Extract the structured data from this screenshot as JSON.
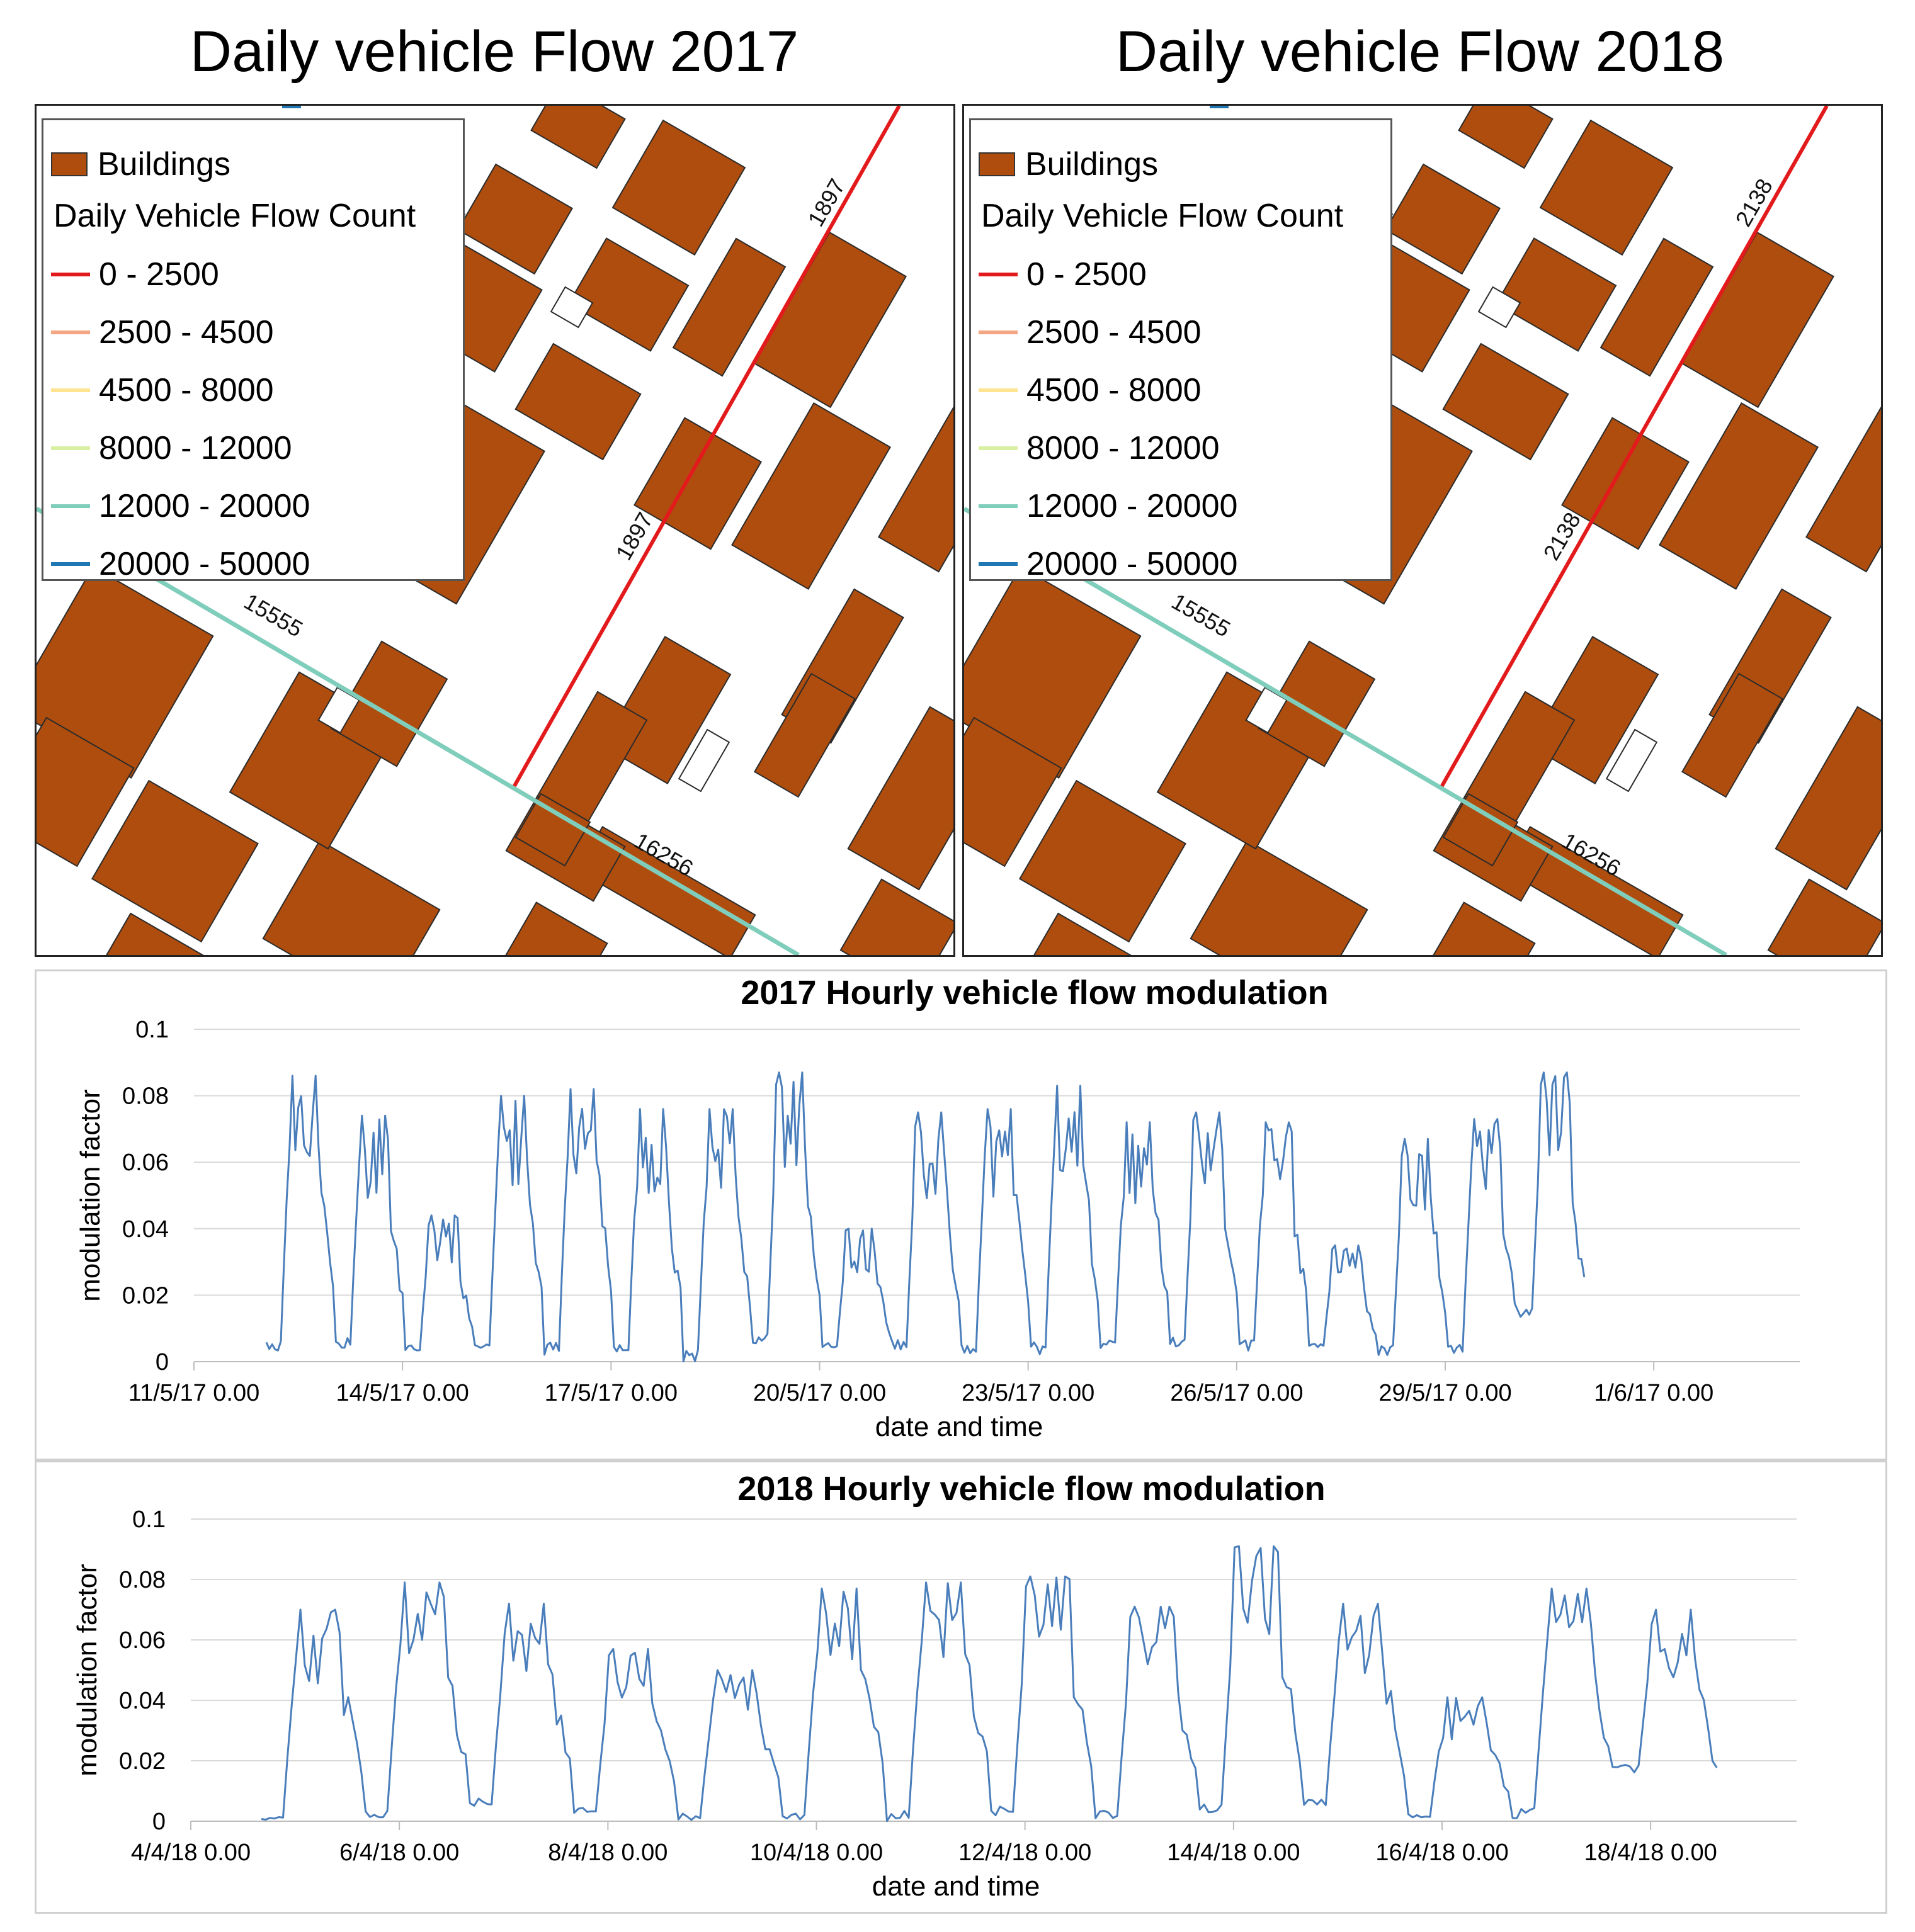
{
  "maps": [
    {
      "title": "Daily vehicle Flow 2017",
      "road_labels": [
        "1897",
        "1897",
        "15555",
        "16256"
      ]
    },
    {
      "title": "Daily vehicle Flow 2018",
      "road_labels": [
        "2138",
        "2138",
        "15555",
        "16256"
      ]
    }
  ],
  "legend": {
    "buildings_label": "Buildings",
    "buildings_color": "#ae4d0e",
    "heading": "Daily Vehicle Flow Count",
    "classes": [
      {
        "label": "0 - 2500",
        "color": "#e31a1c"
      },
      {
        "label": "2500 - 4500",
        "color": "#f4a582"
      },
      {
        "label": "4500 - 8000",
        "color": "#fee391"
      },
      {
        "label": "8000 - 12000",
        "color": "#d9f0a3"
      },
      {
        "label": "12000 - 20000",
        "color": "#7fcdbb"
      },
      {
        "label": "20000 - 50000",
        "color": "#1f78b4"
      }
    ]
  },
  "chart_data": [
    {
      "type": "line",
      "title": "2017 Hourly vehicle flow modulation",
      "xlabel": "date and time",
      "ylabel": "modulation factor",
      "ylim": [
        0,
        0.1
      ],
      "yticks": [
        "0",
        "0.02",
        "0.04",
        "0.06",
        "0.08",
        "0.1"
      ],
      "xticks": [
        "11/5/17  0.00",
        "14/5/17  0.00",
        "17/5/17  0.00",
        "20/5/17  0.00",
        "23/5/17  0.00",
        "26/5/17  0.00",
        "29/5/17  0.00",
        "1/6/17  0.00"
      ],
      "x_start": "11/5/17  0.00",
      "x_end": "1/6/17  0.00",
      "grid": true,
      "color": "#4a7ebb",
      "series_start": "12/5/17  0.00",
      "daily_peaks": [
        0.086,
        0.074,
        0.044,
        0.08,
        0.082,
        0.076,
        0.076,
        0.087,
        0.04,
        0.075,
        0.076,
        0.083,
        0.072,
        0.075,
        0.072,
        0.035,
        0.067,
        0.073,
        0.087
      ],
      "daily_mins": [
        0.003,
        0.004,
        0.003,
        0.002,
        0.002,
        0.002,
        0.0,
        0.005,
        0.004,
        0.003,
        0.002,
        0.002,
        0.003,
        0.004,
        0.003,
        0.004,
        0.002,
        0.002,
        0.013
      ]
    },
    {
      "type": "line",
      "title": "2018 Hourly vehicle flow modulation",
      "xlabel": "date and time",
      "ylabel": "modulation factor",
      "ylim": [
        0,
        0.1
      ],
      "yticks": [
        "0",
        "0.02",
        "0.04",
        "0.06",
        "0.08",
        "0.1"
      ],
      "xticks": [
        "4/4/18  0.00",
        "6/4/18  0.00",
        "8/4/18  0.00",
        "10/4/18  0.00",
        "12/4/18  0.00",
        "14/4/18  0.00",
        "16/4/18  0.00",
        "18/4/18  0.00"
      ],
      "x_start": "4/4/18  0.00",
      "x_end": "18/4/18  0.00",
      "grid": true,
      "color": "#4a7ebb",
      "series_start": "4/4/18  8.00",
      "daily_peaks": [
        0.07,
        0.079,
        0.072,
        0.057,
        0.05,
        0.077,
        0.079,
        0.081,
        0.071,
        0.091,
        0.072,
        0.041,
        0.077,
        0.07
      ],
      "daily_mins": [
        0.0,
        0.001,
        0.005,
        0.002,
        0.0,
        0.0,
        0.0,
        0.001,
        0.0,
        0.002,
        0.004,
        0.001,
        0.001,
        0.016
      ]
    }
  ]
}
